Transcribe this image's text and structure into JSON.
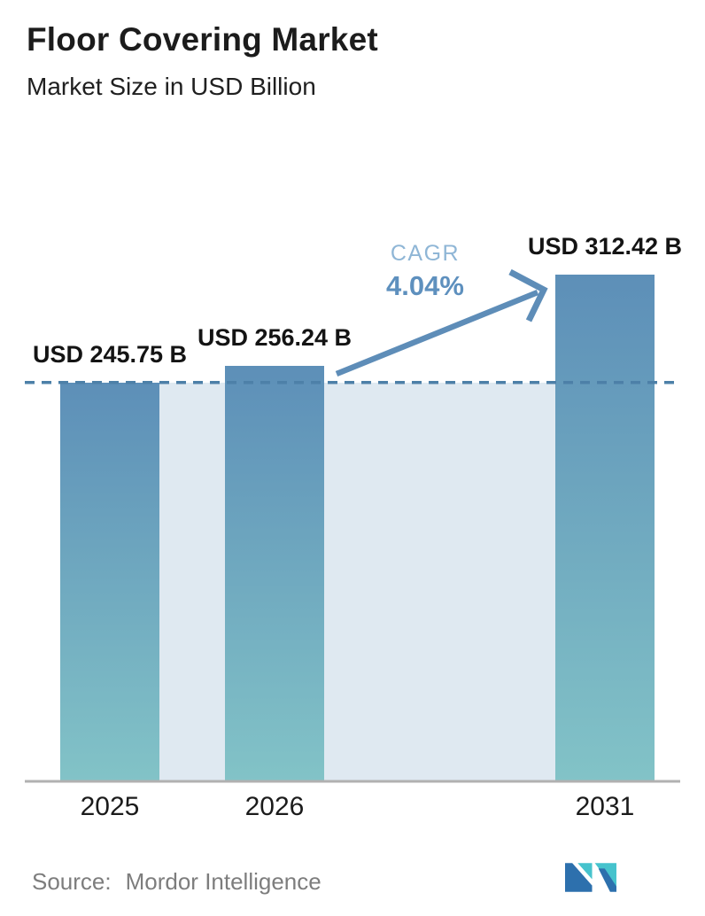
{
  "header": {
    "title": "Floor Covering Market",
    "subtitle": "Market Size in USD Billion"
  },
  "chart_data": {
    "type": "bar",
    "title": "Floor Covering Market",
    "subtitle": "Market Size in USD Billion",
    "unit": "USD Billion",
    "categories": [
      "2025",
      "2026",
      "2031"
    ],
    "values": [
      245.75,
      256.24,
      312.42
    ],
    "bar_labels": [
      "USD 245.75 B",
      "USD 256.24 B",
      "USD 312.42 B"
    ],
    "reference_line_value": 245.75,
    "annotation": {
      "label": "CAGR",
      "value": "4.04%"
    },
    "grid": false,
    "y_axis_visible": false,
    "legend": "none"
  },
  "footer": {
    "source_label": "Source:",
    "source_value": "Mordor Intelligence"
  },
  "icons": {
    "logo": "mordor-intelligence-logo"
  },
  "colors": {
    "text_dark": "#1c1c1c",
    "bar_top": "#5d8fb8",
    "bar_bottom": "#82c3c7",
    "band": "#dfe9f1",
    "dashed_line": "#4d80a8",
    "arrow": "#5e8db8",
    "cagr_label": "#8fb6d6",
    "cagr_value": "#5e90be",
    "axis_line": "#b1b1b1",
    "source_text": "#7d7d7d",
    "logo_blue": "#2d70ad",
    "logo_teal": "#46c3cd"
  }
}
